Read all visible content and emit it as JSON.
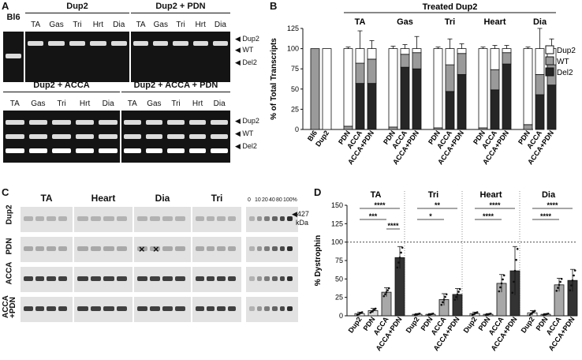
{
  "panelA": {
    "letter": "A",
    "gels": [
      {
        "title": "",
        "lanes": [
          "Bl6"
        ],
        "bands": [
          1
        ]
      },
      {
        "title": "Dup2",
        "lanes": [
          "TA",
          "Gas",
          "Tri",
          "Hrt",
          "Dia"
        ],
        "bands": [
          0,
          0,
          0,
          0,
          0
        ]
      },
      {
        "title": "Dup2 + PDN",
        "lanes": [
          "TA",
          "Gas",
          "Tri",
          "Hrt",
          "Dia"
        ],
        "bands": [
          0,
          0,
          0,
          0,
          0
        ]
      },
      {
        "title": "Dup2 + ACCA",
        "lanes": [
          "TA",
          "Gas",
          "Tri",
          "Hrt",
          "Dia"
        ],
        "bands": [
          2,
          2,
          2,
          2,
          2
        ]
      },
      {
        "title": "Dup2 + ACCA + PDN",
        "lanes": [
          "TA",
          "Gas",
          "Tri",
          "Hrt",
          "Dia"
        ],
        "bands": [
          2,
          2,
          2,
          2,
          2
        ]
      }
    ],
    "markers": [
      "Dup2",
      "WT",
      "Del2"
    ]
  },
  "panelB": {
    "letter": "B",
    "header": "Treated Dup2",
    "groups": [
      "TA",
      "Gas",
      "Tri",
      "Heart",
      "Dia"
    ],
    "chart_data": {
      "type": "bar",
      "ylabel": "% of Total Transcripts",
      "ylim": [
        0,
        125
      ],
      "yticks": [
        0,
        25,
        50,
        75,
        100,
        125
      ],
      "legend": [
        "Dup2",
        "WT",
        "Del2"
      ],
      "legend_colors": [
        "#ffffff",
        "#9a9a9a",
        "#262626"
      ],
      "categories": [
        "Bl6",
        "Dup2",
        "PDN",
        "ACCA",
        "ACCA+PDN",
        "PDN",
        "ACCA",
        "ACCA+PDN",
        "PDN",
        "ACCA",
        "ACCA+PDN",
        "PDN",
        "ACCA",
        "ACCA+PDN",
        "PDN",
        "ACCA",
        "ACCA+PDN"
      ],
      "series": [
        {
          "name": "Del2",
          "values": [
            0,
            0,
            0,
            57,
            57,
            0,
            77,
            75,
            0,
            47,
            68,
            0,
            49,
            81,
            0,
            43,
            55
          ]
        },
        {
          "name": "WT",
          "values": [
            100,
            0,
            4,
            25,
            30,
            3,
            16,
            20,
            2,
            33,
            26,
            2,
            25,
            14,
            6,
            25,
            25
          ]
        },
        {
          "name": "Dup2",
          "values": [
            0,
            100,
            96,
            18,
            13,
            97,
            7,
            5,
            98,
            20,
            6,
            98,
            26,
            5,
            94,
            32,
            20
          ]
        }
      ],
      "error": [
        0,
        0,
        2,
        22,
        10,
        3,
        5,
        15,
        2,
        12,
        6,
        2,
        4,
        4,
        2,
        26,
        12
      ]
    }
  },
  "panelC": {
    "letter": "C",
    "muscles": [
      "TA",
      "Heart",
      "Dia",
      "Tri"
    ],
    "standards": [
      "0",
      "10",
      "20",
      "40",
      "80",
      "100%"
    ],
    "rows": [
      "Dup2",
      "PDN",
      "ACCA",
      "ACCA\n+PDN"
    ],
    "size_label": "427",
    "size_unit": "kDa",
    "crosses": [
      "×",
      "×"
    ]
  },
  "panelD": {
    "letter": "D",
    "groups": [
      "TA",
      "Tri",
      "Heart",
      "Dia"
    ],
    "chart_data": {
      "type": "bar",
      "ylabel": "% Dystrophin",
      "ylim": [
        0,
        150
      ],
      "yticks": [
        0,
        25,
        50,
        75,
        100,
        125,
        150
      ],
      "reference_line": 100,
      "categories": [
        "Dup2",
        "PDN",
        "ACCA",
        "ACCA+PDN",
        "Dup2",
        "PDN",
        "ACCA",
        "ACCA+PDN",
        "Dup2",
        "PDN",
        "ACCA",
        "ACCA+PDN",
        "Dup2",
        "PDN",
        "ACCA",
        "ACCA+PDN"
      ],
      "values": [
        3,
        7,
        32,
        79,
        2,
        2,
        22,
        29,
        3,
        2,
        44,
        61,
        4,
        2,
        42,
        48
      ],
      "error": [
        2,
        3,
        6,
        15,
        1,
        1,
        8,
        8,
        2,
        1,
        12,
        33,
        3,
        1,
        9,
        15
      ],
      "fill": [
        "#ffffff",
        "#dcdcdc",
        "#a8a8a8",
        "#333333",
        "#ffffff",
        "#dcdcdc",
        "#a8a8a8",
        "#333333",
        "#ffffff",
        "#dcdcdc",
        "#a8a8a8",
        "#333333",
        "#ffffff",
        "#dcdcdc",
        "#a8a8a8",
        "#333333"
      ],
      "significance": [
        {
          "group": "TA",
          "from": 0,
          "to": 3,
          "label": "****"
        },
        {
          "group": "TA",
          "from": 0,
          "to": 2,
          "label": "***"
        },
        {
          "group": "TA",
          "from": 2,
          "to": 3,
          "label": "****"
        },
        {
          "group": "Tri",
          "from": 0,
          "to": 3,
          "label": "**"
        },
        {
          "group": "Tri",
          "from": 0,
          "to": 2,
          "label": "*"
        },
        {
          "group": "Heart",
          "from": 0,
          "to": 3,
          "label": "****"
        },
        {
          "group": "Heart",
          "from": 0,
          "to": 2,
          "label": "****"
        },
        {
          "group": "Dia",
          "from": 0,
          "to": 3,
          "label": "****"
        },
        {
          "group": "Dia",
          "from": 0,
          "to": 2,
          "label": "****"
        }
      ]
    }
  }
}
